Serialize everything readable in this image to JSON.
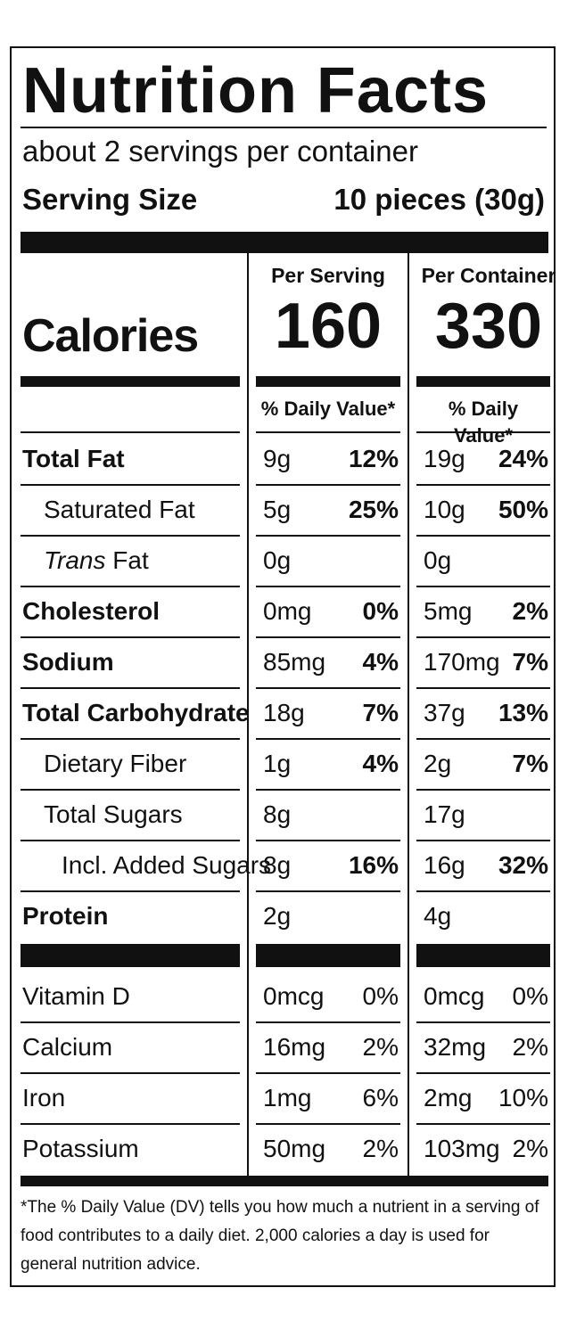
{
  "title": "Nutrition Facts",
  "servings_per_container": "about 2 servings per container",
  "serving_size_label": "Serving Size",
  "serving_size_value": "10 pieces (30g)",
  "calories_label": "Calories",
  "columns": {
    "serving": {
      "header": "Per Serving",
      "calories": "160",
      "dv_header": "% Daily Value*"
    },
    "container": {
      "header": "Per Container",
      "calories": "330",
      "dv_header": "% Daily Value*"
    }
  },
  "nutrients": [
    {
      "name": "Total Fat",
      "serving_amount": "9g",
      "serving_dv": "12%",
      "container_amount": "19g",
      "container_dv": "24%"
    },
    {
      "name": "Saturated Fat",
      "serving_amount": "5g",
      "serving_dv": "25%",
      "container_amount": "10g",
      "container_dv": "50%"
    },
    {
      "name_prefix": "Trans",
      "name": " Fat",
      "serving_amount": "0g",
      "serving_dv": "",
      "container_amount": "0g",
      "container_dv": ""
    },
    {
      "name": "Cholesterol",
      "serving_amount": "0mg",
      "serving_dv": "0%",
      "container_amount": "5mg",
      "container_dv": "2%"
    },
    {
      "name": "Sodium",
      "serving_amount": "85mg",
      "serving_dv": "4%",
      "container_amount": "170mg",
      "container_dv": "7%"
    },
    {
      "name": "Total Carbohydrate",
      "serving_amount": "18g",
      "serving_dv": "7%",
      "container_amount": "37g",
      "container_dv": "13%"
    },
    {
      "name": "Dietary Fiber",
      "serving_amount": "1g",
      "serving_dv": "4%",
      "container_amount": "2g",
      "container_dv": "7%"
    },
    {
      "name": "Total Sugars",
      "serving_amount": "8g",
      "serving_dv": "",
      "container_amount": "17g",
      "container_dv": ""
    },
    {
      "name": "Incl. Added Sugars",
      "serving_amount": "8g",
      "serving_dv": "16%",
      "container_amount": "16g",
      "container_dv": "32%"
    },
    {
      "name": "Protein",
      "serving_amount": "2g",
      "serving_dv": "",
      "container_amount": "4g",
      "container_dv": ""
    }
  ],
  "vitamins": [
    {
      "name": "Vitamin D",
      "serving_amount": "0mcg",
      "serving_dv": "0%",
      "container_amount": "0mcg",
      "container_dv": "0%"
    },
    {
      "name": "Calcium",
      "serving_amount": "16mg",
      "serving_dv": "2%",
      "container_amount": "32mg",
      "container_dv": "2%"
    },
    {
      "name": "Iron",
      "serving_amount": "1mg",
      "serving_dv": "6%",
      "container_amount": "2mg",
      "container_dv": "10%"
    },
    {
      "name": "Potassium",
      "serving_amount": "50mg",
      "serving_dv": "2%",
      "container_amount": "103mg",
      "container_dv": "2%"
    }
  ],
  "footnote": "*The % Daily Value (DV) tells you how much a nutrient in a serving of food contributes to a daily diet. 2,000 calories a day is used for general nutrition advice."
}
